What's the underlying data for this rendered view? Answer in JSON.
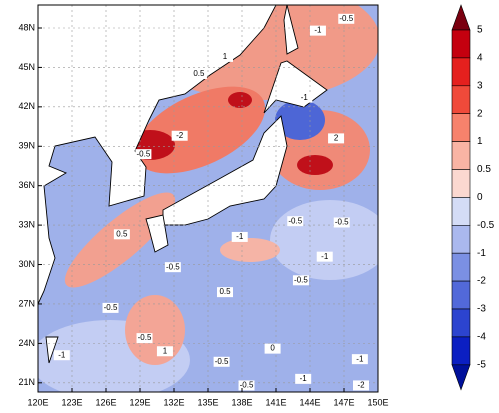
{
  "map": {
    "lonlim": [
      120,
      150
    ],
    "latlim": [
      20.3,
      49.75
    ],
    "lon_ticks": [
      {
        "value": 120,
        "label": "120E"
      },
      {
        "value": 123,
        "label": "123E"
      },
      {
        "value": 126,
        "label": "126E"
      },
      {
        "value": 129,
        "label": "129E"
      },
      {
        "value": 132,
        "label": "132E"
      },
      {
        "value": 135,
        "label": "135E"
      },
      {
        "value": 138,
        "label": "138E"
      },
      {
        "value": 141,
        "label": "141E"
      },
      {
        "value": 144,
        "label": "144E"
      },
      {
        "value": 147,
        "label": "147E"
      },
      {
        "value": 150,
        "label": "150E"
      }
    ],
    "lat_ticks": [
      {
        "value": 21,
        "label": "21N"
      },
      {
        "value": 24,
        "label": "24N"
      },
      {
        "value": 27,
        "label": "27N"
      },
      {
        "value": 30,
        "label": "30N"
      },
      {
        "value": 33,
        "label": "33N"
      },
      {
        "value": 36,
        "label": "36N"
      },
      {
        "value": 39,
        "label": "39N"
      },
      {
        "value": 42,
        "label": "42N"
      },
      {
        "value": 45,
        "label": "45N"
      },
      {
        "value": 48,
        "label": "48N"
      }
    ],
    "contour_labels": [
      {
        "text": "-0.5",
        "lon": 147.2,
        "lat": 48.7
      },
      {
        "text": "-1",
        "lon": 144.7,
        "lat": 47.8
      },
      {
        "text": "0.5",
        "lon": 134.2,
        "lat": 44.5
      },
      {
        "text": "1",
        "lon": 136.5,
        "lat": 45.8
      },
      {
        "text": "-1",
        "lon": 143.5,
        "lat": 42.7
      },
      {
        "text": "-2",
        "lon": 132.5,
        "lat": 39.8
      },
      {
        "text": "2",
        "lon": 146.3,
        "lat": 39.6
      },
      {
        "text": "-0.5",
        "lon": 129.3,
        "lat": 38.4
      },
      {
        "text": "-0.5",
        "lon": 142.7,
        "lat": 33.3
      },
      {
        "text": "-0.5",
        "lon": 146.8,
        "lat": 33.2
      },
      {
        "text": "0.5",
        "lon": 127.4,
        "lat": 32.3
      },
      {
        "text": "-1",
        "lon": 137.8,
        "lat": 32.1
      },
      {
        "text": "-0.5",
        "lon": 131.9,
        "lat": 29.8
      },
      {
        "text": "-1",
        "lon": 145.3,
        "lat": 30.6
      },
      {
        "text": "-0.5",
        "lon": 143.2,
        "lat": 28.8
      },
      {
        "text": "0.5",
        "lon": 136.5,
        "lat": 27.9
      },
      {
        "text": "-0.5",
        "lon": 126.4,
        "lat": 26.7
      },
      {
        "text": "-0.5",
        "lon": 129.4,
        "lat": 24.4
      },
      {
        "text": "-1",
        "lon": 122.1,
        "lat": 23.1
      },
      {
        "text": "1",
        "lon": 131.2,
        "lat": 23.4
      },
      {
        "text": "-0.5",
        "lon": 136.2,
        "lat": 22.6
      },
      {
        "text": "0",
        "lon": 140.7,
        "lat": 23.6
      },
      {
        "text": "-1",
        "lon": 148.4,
        "lat": 22.8
      },
      {
        "text": "-1",
        "lon": 143.4,
        "lat": 21.3
      },
      {
        "text": "-0.5",
        "lon": 138.4,
        "lat": 20.8
      },
      {
        "text": "-2",
        "lon": 148.5,
        "lat": 20.8
      }
    ]
  },
  "colorbar": {
    "levels": [
      5,
      4,
      3,
      2,
      1,
      0.5,
      0,
      -0.5,
      -1,
      -2,
      -3,
      -4,
      -5
    ],
    "colors": [
      "#7a0010",
      "#c4000f",
      "#e5201e",
      "#f04a3a",
      "#f7826c",
      "#f9b4a4",
      "#fbd8d0",
      "#d4dcf6",
      "#aab8ee",
      "#7b90e3",
      "#5269d9",
      "#2c44cf",
      "#0b1fc2",
      "#00109a"
    ]
  }
}
